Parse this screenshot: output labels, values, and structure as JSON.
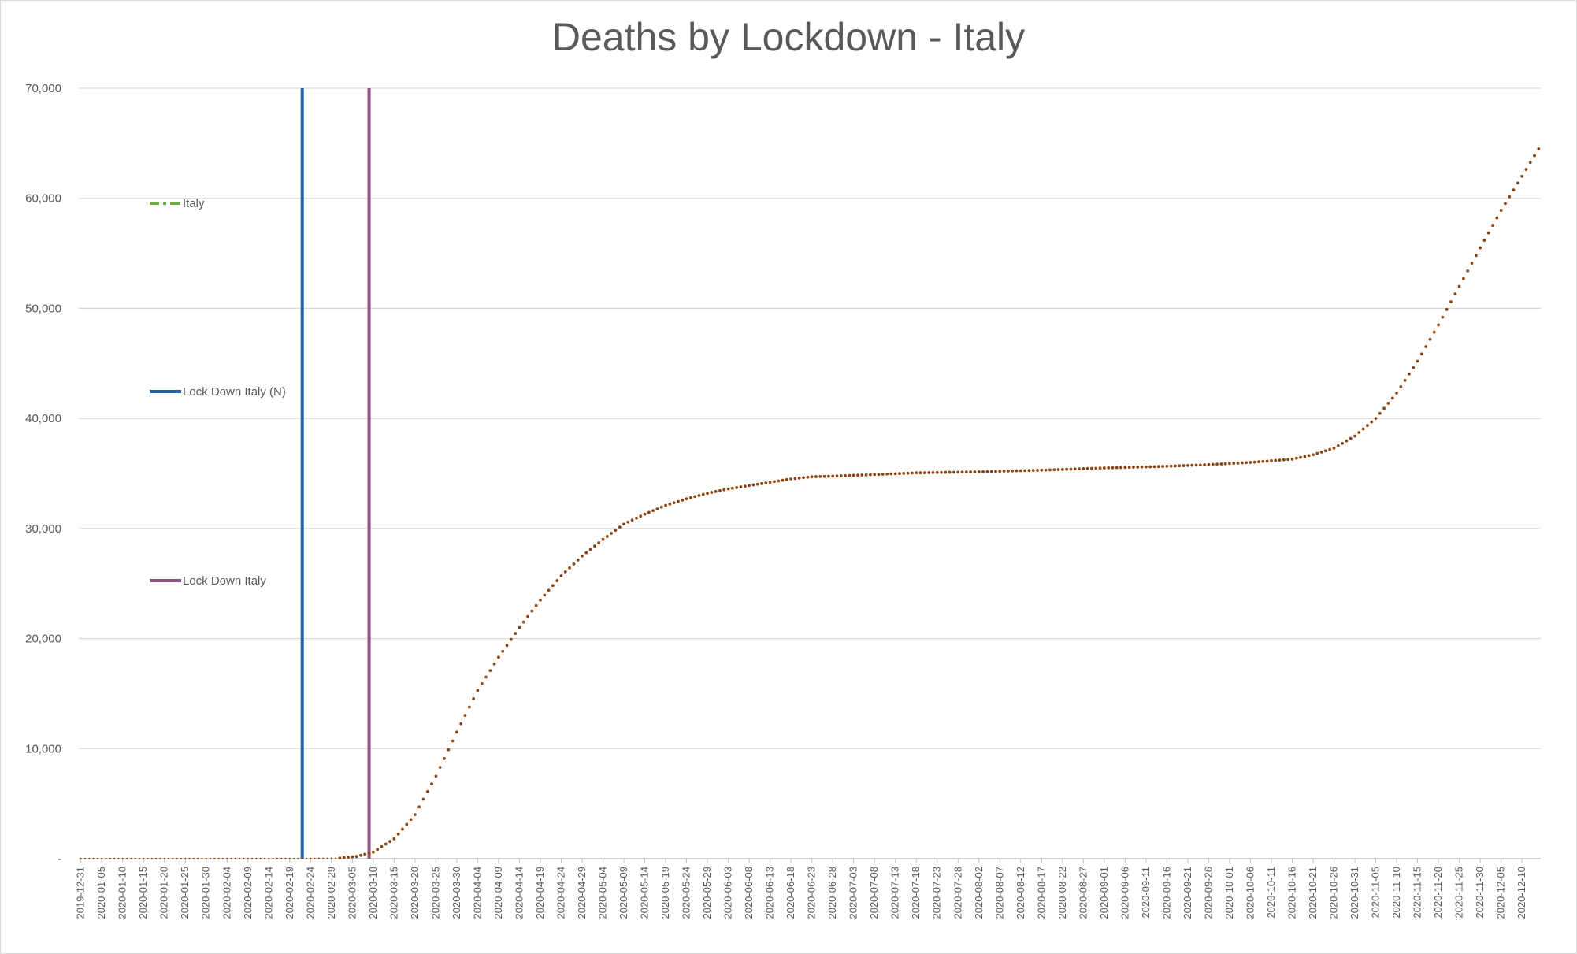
{
  "chart_data": {
    "type": "line",
    "title": "Deaths by Lockdown - Italy",
    "xlabel": "",
    "ylabel": "",
    "ylim": [
      0,
      70000
    ],
    "y_ticks": [
      "-",
      "10,000",
      "20,000",
      "30,000",
      "40,000",
      "50,000",
      "60,000",
      "70,000"
    ],
    "y_tick_values": [
      0,
      10000,
      20000,
      30000,
      40000,
      50000,
      60000,
      70000
    ],
    "x_range": [
      "2019-12-31",
      "2020-12-14"
    ],
    "x_ticks": [
      "2019-12-31",
      "2020-01-05",
      "2020-01-10",
      "2020-01-15",
      "2020-01-20",
      "2020-01-25",
      "2020-01-30",
      "2020-02-04",
      "2020-02-09",
      "2020-02-14",
      "2020-02-19",
      "2020-02-24",
      "2020-02-29",
      "2020-03-05",
      "2020-03-10",
      "2020-03-15",
      "2020-03-20",
      "2020-03-25",
      "2020-03-30",
      "2020-04-04",
      "2020-04-09",
      "2020-04-14",
      "2020-04-19",
      "2020-04-24",
      "2020-04-29",
      "2020-05-04",
      "2020-05-09",
      "2020-05-14",
      "2020-05-19",
      "2020-05-24",
      "2020-05-29",
      "2020-06-03",
      "2020-06-08",
      "2020-06-13",
      "2020-06-18",
      "2020-06-23",
      "2020-06-28",
      "2020-07-03",
      "2020-07-08",
      "2020-07-13",
      "2020-07-18",
      "2020-07-23",
      "2020-07-28",
      "2020-08-02",
      "2020-08-07",
      "2020-08-12",
      "2020-08-17",
      "2020-08-22",
      "2020-08-27",
      "2020-09-01",
      "2020-09-06",
      "2020-09-11",
      "2020-09-16",
      "2020-09-21",
      "2020-09-26",
      "2020-10-01",
      "2020-10-06",
      "2020-10-11",
      "2020-10-16",
      "2020-10-21",
      "2020-10-26",
      "2020-10-31",
      "2020-11-05",
      "2020-11-10",
      "2020-11-15",
      "2020-11-20",
      "2020-11-25",
      "2020-11-30",
      "2020-12-05",
      "2020-12-10"
    ],
    "grid": true,
    "legend_position": "left",
    "series": [
      {
        "name": "Italy",
        "style": "dotted",
        "color": "#8B4513",
        "legend_color": "#70AD47",
        "points": [
          {
            "x": "2019-12-31",
            "y": 0
          },
          {
            "x": "2020-02-20",
            "y": 0
          },
          {
            "x": "2020-03-01",
            "y": 30
          },
          {
            "x": "2020-03-06",
            "y": 200
          },
          {
            "x": "2020-03-10",
            "y": 600
          },
          {
            "x": "2020-03-15",
            "y": 1800
          },
          {
            "x": "2020-03-20",
            "y": 4000
          },
          {
            "x": "2020-03-25",
            "y": 7500
          },
          {
            "x": "2020-03-30",
            "y": 11500
          },
          {
            "x": "2020-04-04",
            "y": 15300
          },
          {
            "x": "2020-04-09",
            "y": 18300
          },
          {
            "x": "2020-04-14",
            "y": 21000
          },
          {
            "x": "2020-04-19",
            "y": 23500
          },
          {
            "x": "2020-04-24",
            "y": 25700
          },
          {
            "x": "2020-04-29",
            "y": 27500
          },
          {
            "x": "2020-05-04",
            "y": 29000
          },
          {
            "x": "2020-05-09",
            "y": 30400
          },
          {
            "x": "2020-05-14",
            "y": 31300
          },
          {
            "x": "2020-05-19",
            "y": 32100
          },
          {
            "x": "2020-05-24",
            "y": 32700
          },
          {
            "x": "2020-05-29",
            "y": 33200
          },
          {
            "x": "2020-06-03",
            "y": 33600
          },
          {
            "x": "2020-06-08",
            "y": 33900
          },
          {
            "x": "2020-06-13",
            "y": 34200
          },
          {
            "x": "2020-06-18",
            "y": 34500
          },
          {
            "x": "2020-06-23",
            "y": 34700
          },
          {
            "x": "2020-06-28",
            "y": 34750
          },
          {
            "x": "2020-07-08",
            "y": 34900
          },
          {
            "x": "2020-07-18",
            "y": 35050
          },
          {
            "x": "2020-08-02",
            "y": 35150
          },
          {
            "x": "2020-08-17",
            "y": 35300
          },
          {
            "x": "2020-09-01",
            "y": 35500
          },
          {
            "x": "2020-09-16",
            "y": 35650
          },
          {
            "x": "2020-09-26",
            "y": 35800
          },
          {
            "x": "2020-10-06",
            "y": 36000
          },
          {
            "x": "2020-10-16",
            "y": 36300
          },
          {
            "x": "2020-10-21",
            "y": 36700
          },
          {
            "x": "2020-10-26",
            "y": 37300
          },
          {
            "x": "2020-10-31",
            "y": 38400
          },
          {
            "x": "2020-11-05",
            "y": 40000
          },
          {
            "x": "2020-11-10",
            "y": 42300
          },
          {
            "x": "2020-11-15",
            "y": 45200
          },
          {
            "x": "2020-11-20",
            "y": 48500
          },
          {
            "x": "2020-11-25",
            "y": 52000
          },
          {
            "x": "2020-11-30",
            "y": 55500
          },
          {
            "x": "2020-12-05",
            "y": 58900
          },
          {
            "x": "2020-12-10",
            "y": 62000
          },
          {
            "x": "2020-12-14",
            "y": 64500
          }
        ]
      },
      {
        "name": "Lock Down Italy (N)",
        "style": "vertical-line",
        "color": "#1F5FA8",
        "x": "2020-02-22"
      },
      {
        "name": "Lock Down Italy",
        "style": "vertical-line",
        "color": "#8A4F7D",
        "x": "2020-03-09"
      }
    ]
  }
}
